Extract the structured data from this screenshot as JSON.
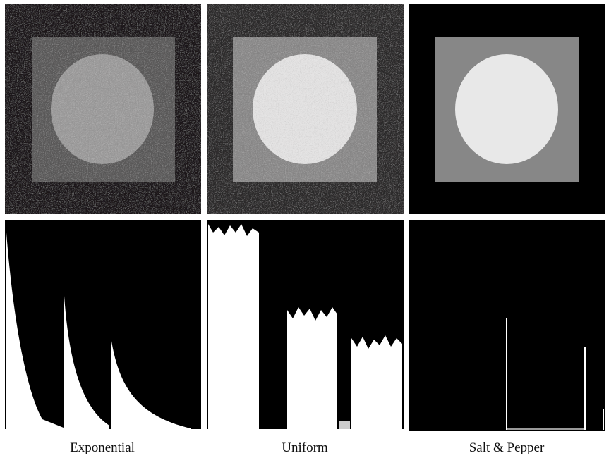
{
  "captions": [
    "Exponential",
    "Uniform",
    "Salt & Pepper"
  ]
}
